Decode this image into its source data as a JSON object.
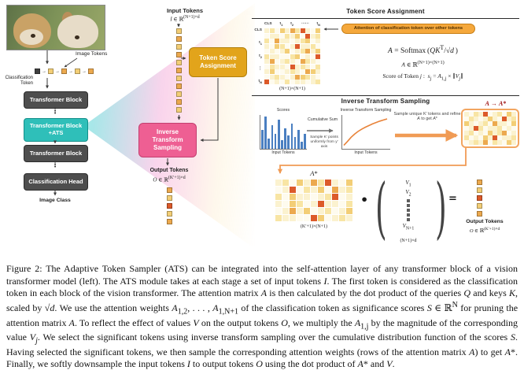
{
  "left": {
    "image_tokens": "Image Tokens",
    "classification_token_html": "Classification<br>Token",
    "block1": "Transformer Block",
    "block_ats_html": "Transformer Block<br>+ATS",
    "block2": "Transformer Block",
    "head": "Classification Head",
    "image_class": "Image Class",
    "dots": "⋮"
  },
  "middle": {
    "input_tokens": "Input Tokens",
    "input_dim_html": "<i>I</i> ∈ ℝ<sup>(N+1)×d</sup>",
    "tsa_box": "Token Score Assignment",
    "its_box": "Inverse Transform Sampling",
    "output_tokens": "Output Tokens",
    "output_dim_html": "<i>O</i> ∈ ℝ<sup>(K′+1)×d</sup>"
  },
  "tsa_panel": {
    "title": "Token Score Assignment",
    "col_labels_html": [
      "CLS",
      "t<sub>1</sub>",
      "t<sub>2</sub>",
      "⋯⋯",
      "t<sub>N</sub>"
    ],
    "row_labels_html": [
      "CLS",
      "t<sub>1</sub>",
      "t<sub>2</sub>",
      "⋮",
      "t<sub>N</sub>"
    ],
    "callout": "Attention of classification token over other tokens",
    "eq1_html": "<i>A</i> = Softmax (<i>QK</i><sup>T</sup>/√<i>d</i> )",
    "eq2_html": "<i>A</i> ∈ ℝ<sup>(N+1)×(N+1)</sup>",
    "eq3_html": "Score of Token <i>j</i> :&nbsp; <i>s<sub>j</sub></i> = <i>A</i><sub>1,j</sub> × ∥<i>V<sub>j</sub></i>∥",
    "matrix_dim": "(N+1)×(N+1)"
  },
  "its_panel": {
    "title": "Inverse Transform Sampling",
    "a_to_astar_html": "<i>A</i> → <i>A</i>*",
    "scores_title": "Scores",
    "cumsum_label": "Cumulative Sum",
    "plot_title": "Inverse Transform Sampling",
    "sample_note": "Sample K′ points uniformly from y′ axis",
    "input_tokens_left": "Input Tokens",
    "input_tokens_right": "Input Tokens",
    "refine_html": "Sample unique K′ tokens and refine <i>A</i> to get <i>A</i>*"
  },
  "bottom": {
    "astar_html": "<i>A</i>*",
    "astar_dim": "(K′+1)×(N+1)",
    "dot": "•",
    "v1_html": "<i>V</i><sub>1</sub>",
    "v2_html": "<i>V</i><sub>2</sub>",
    "vN_html": "<i>V</i><sub>N+1</sub>",
    "v_dim": "(N+1)×d",
    "equals": "=",
    "output_tokens": "Output Tokens",
    "output_dim_html": "<i>O</i> ∈ ℝ<sup>(K′+1)×d</sup>",
    "lparen": "(",
    "rparen": ")"
  },
  "chart_data": [
    {
      "type": "bar",
      "title": "Scores",
      "xlabel": "Input Tokens",
      "values": [
        0.55,
        0.95,
        0.3,
        0.7,
        0.45,
        0.85,
        0.25,
        0.6,
        0.4,
        0.75,
        0.35,
        0.55,
        0.2,
        0.45
      ],
      "color": "#4A7FC1"
    },
    {
      "type": "line",
      "title": "Inverse Transform Sampling",
      "xlabel": "Input Tokens",
      "points": [
        [
          0,
          0.04
        ],
        [
          1,
          0.18
        ],
        [
          2,
          0.33
        ],
        [
          3,
          0.45
        ],
        [
          4,
          0.55
        ],
        [
          5,
          0.63
        ],
        [
          6,
          0.7
        ],
        [
          7,
          0.76
        ],
        [
          8,
          0.82
        ],
        [
          9,
          0.87
        ],
        [
          10,
          0.92
        ],
        [
          11,
          0.96
        ],
        [
          12,
          1.0
        ]
      ],
      "color": "#E8833A"
    }
  ],
  "heatmaps": {
    "palette": [
      "#FEFBEE",
      "#FBF2CF",
      "#F8E5A4",
      "#F3CE76",
      "#ECA94E",
      "#DC5A2A"
    ],
    "attention": {
      "cell": 6,
      "gap": 0.5,
      "cells": [
        "12031425103",
        "01102130512",
        "20411012301",
        "10320151120",
        "01013012413",
        "21100230105",
        "14012104210",
        "02110512102",
        "13001210431",
        "01210143210",
        "50102011012"
      ]
    },
    "sampled": {
      "cell": 5.5,
      "gap": 0.5,
      "cells": [
        "10215012031",
        "02101310512",
        "31012041103",
        "01520112010",
        "12010312401",
        "20103150112",
        "01214021031"
      ]
    },
    "astar": {
      "cell": 8,
      "gap": 1,
      "cells": [
        "12031425103",
        "01502130412",
        "20311012501",
        "10320151102",
        "01413012013",
        "21100530121"
      ]
    }
  },
  "token_palette": {
    "C": "#3F3F3F",
    "3": "#F3CE76",
    "4": "#ECA94E",
    "5": "#DC5A2A"
  },
  "token_strips": {
    "patch": {
      "seq": "C3434",
      "dir": "h",
      "arrow": true
    },
    "input": {
      "seq": "34343434343",
      "dir": "v",
      "arrow": false
    },
    "mid_output": {
      "seq": "43534",
      "dir": "v",
      "arrow": false
    },
    "right_output": {
      "seq": "43534",
      "dir": "v",
      "arrow": false
    }
  },
  "caption_html": "Figure 2: The Adaptive Token Sampler (ATS) can be integrated into the self-attention layer of any transformer block of a vision transformer model (left). The ATS module takes at each stage a set of input tokens <i>I</i>. The first token is considered as the classification token in each block of the vision transformer. The attention matrix <i>A</i> is then calculated by the dot product of the queries <i>Q</i> and keys <i>K</i>, scaled by √<i>d</i>. We use the attention weights <i>A</i><sub>1,2</sub>, . . . , <i>A</i><sub>1,N+1</sub> of the classification token as significance scores <i>S</i> ∈ ℝ<sup>N</sup> for pruning the attention matrix <i>A</i>. To reflect the effect of values <i>V</i> on the output tokens <i>O</i>, we multiply the <i>A</i><sub>1,j</sub> by the magnitude of the corresponding value <i>V<sub>j</sub></i>. We select the significant tokens using inverse transform sampling over the cumulative distribution function of the scores <i>S</i>. Having selected the significant tokens, we then sample the corresponding attention weights (rows of the attention matrix <i>A</i>) to get <i>A</i>*. Finally, we softly downsample the input tokens <i>I</i> to output tokens <i>O</i> using the dot product of <i>A</i>* and <i>V</i>."
}
